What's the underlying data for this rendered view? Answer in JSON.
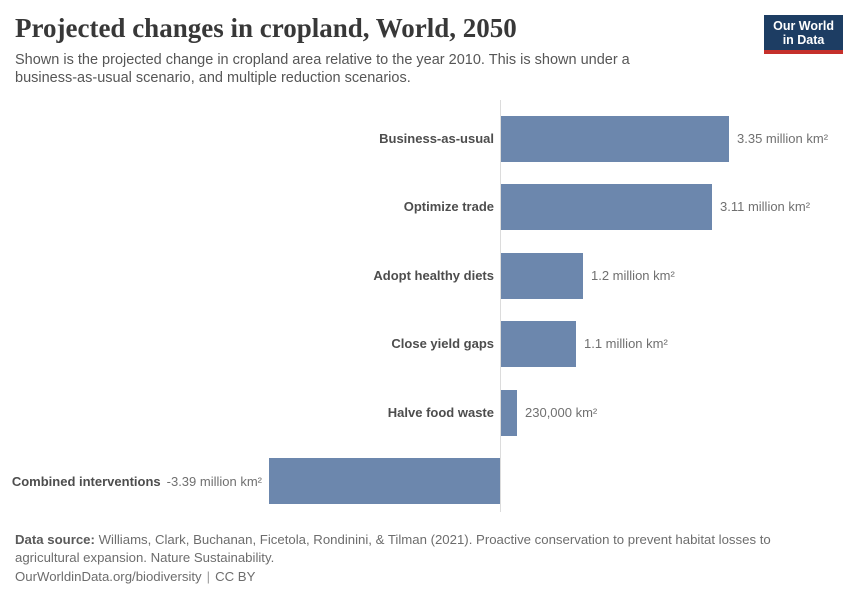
{
  "header": {
    "title": "Projected changes in cropland, World, 2050",
    "subtitle": "Shown is the projected change in cropland area relative to the year 2010. This is shown under a business-as-usual scenario, and multiple reduction scenarios.",
    "logo": {
      "line1": "Our World",
      "line2": "in Data",
      "bg_color": "#1d3d63",
      "accent_color": "#c5302b"
    }
  },
  "chart_data": {
    "type": "bar",
    "orientation": "horizontal",
    "title": "Projected changes in cropland, World, 2050",
    "unit": "million km²",
    "categories": [
      "Business-as-usual",
      "Optimize trade",
      "Adopt healthy diets",
      "Close yield gaps",
      "Halve food waste",
      "Combined interventions"
    ],
    "values": [
      3.35,
      3.11,
      1.2,
      1.1,
      0.23,
      -3.39
    ],
    "value_labels": [
      "3.35 million km²",
      "3.11 million km²",
      "1.2 million km²",
      "1.1 million km²",
      "230,000 km²",
      "-3.39 million km²"
    ],
    "xlim": [
      -3.39,
      3.35
    ],
    "baseline": 0,
    "grid": false,
    "legend": "none",
    "bar_color": "#6c87ad",
    "axis_color": "#dcdcdc"
  },
  "footer": {
    "source_bold": "Data source:",
    "source_rest": "Williams, Clark, Buchanan, Ficetola, Rondinini, & Tilman (2021). Proactive conservation to prevent habitat losses to agricultural expansion. Nature Sustainability.",
    "url": "OurWorldinData.org/biodiversity",
    "separator": "|",
    "license": "CC BY"
  }
}
